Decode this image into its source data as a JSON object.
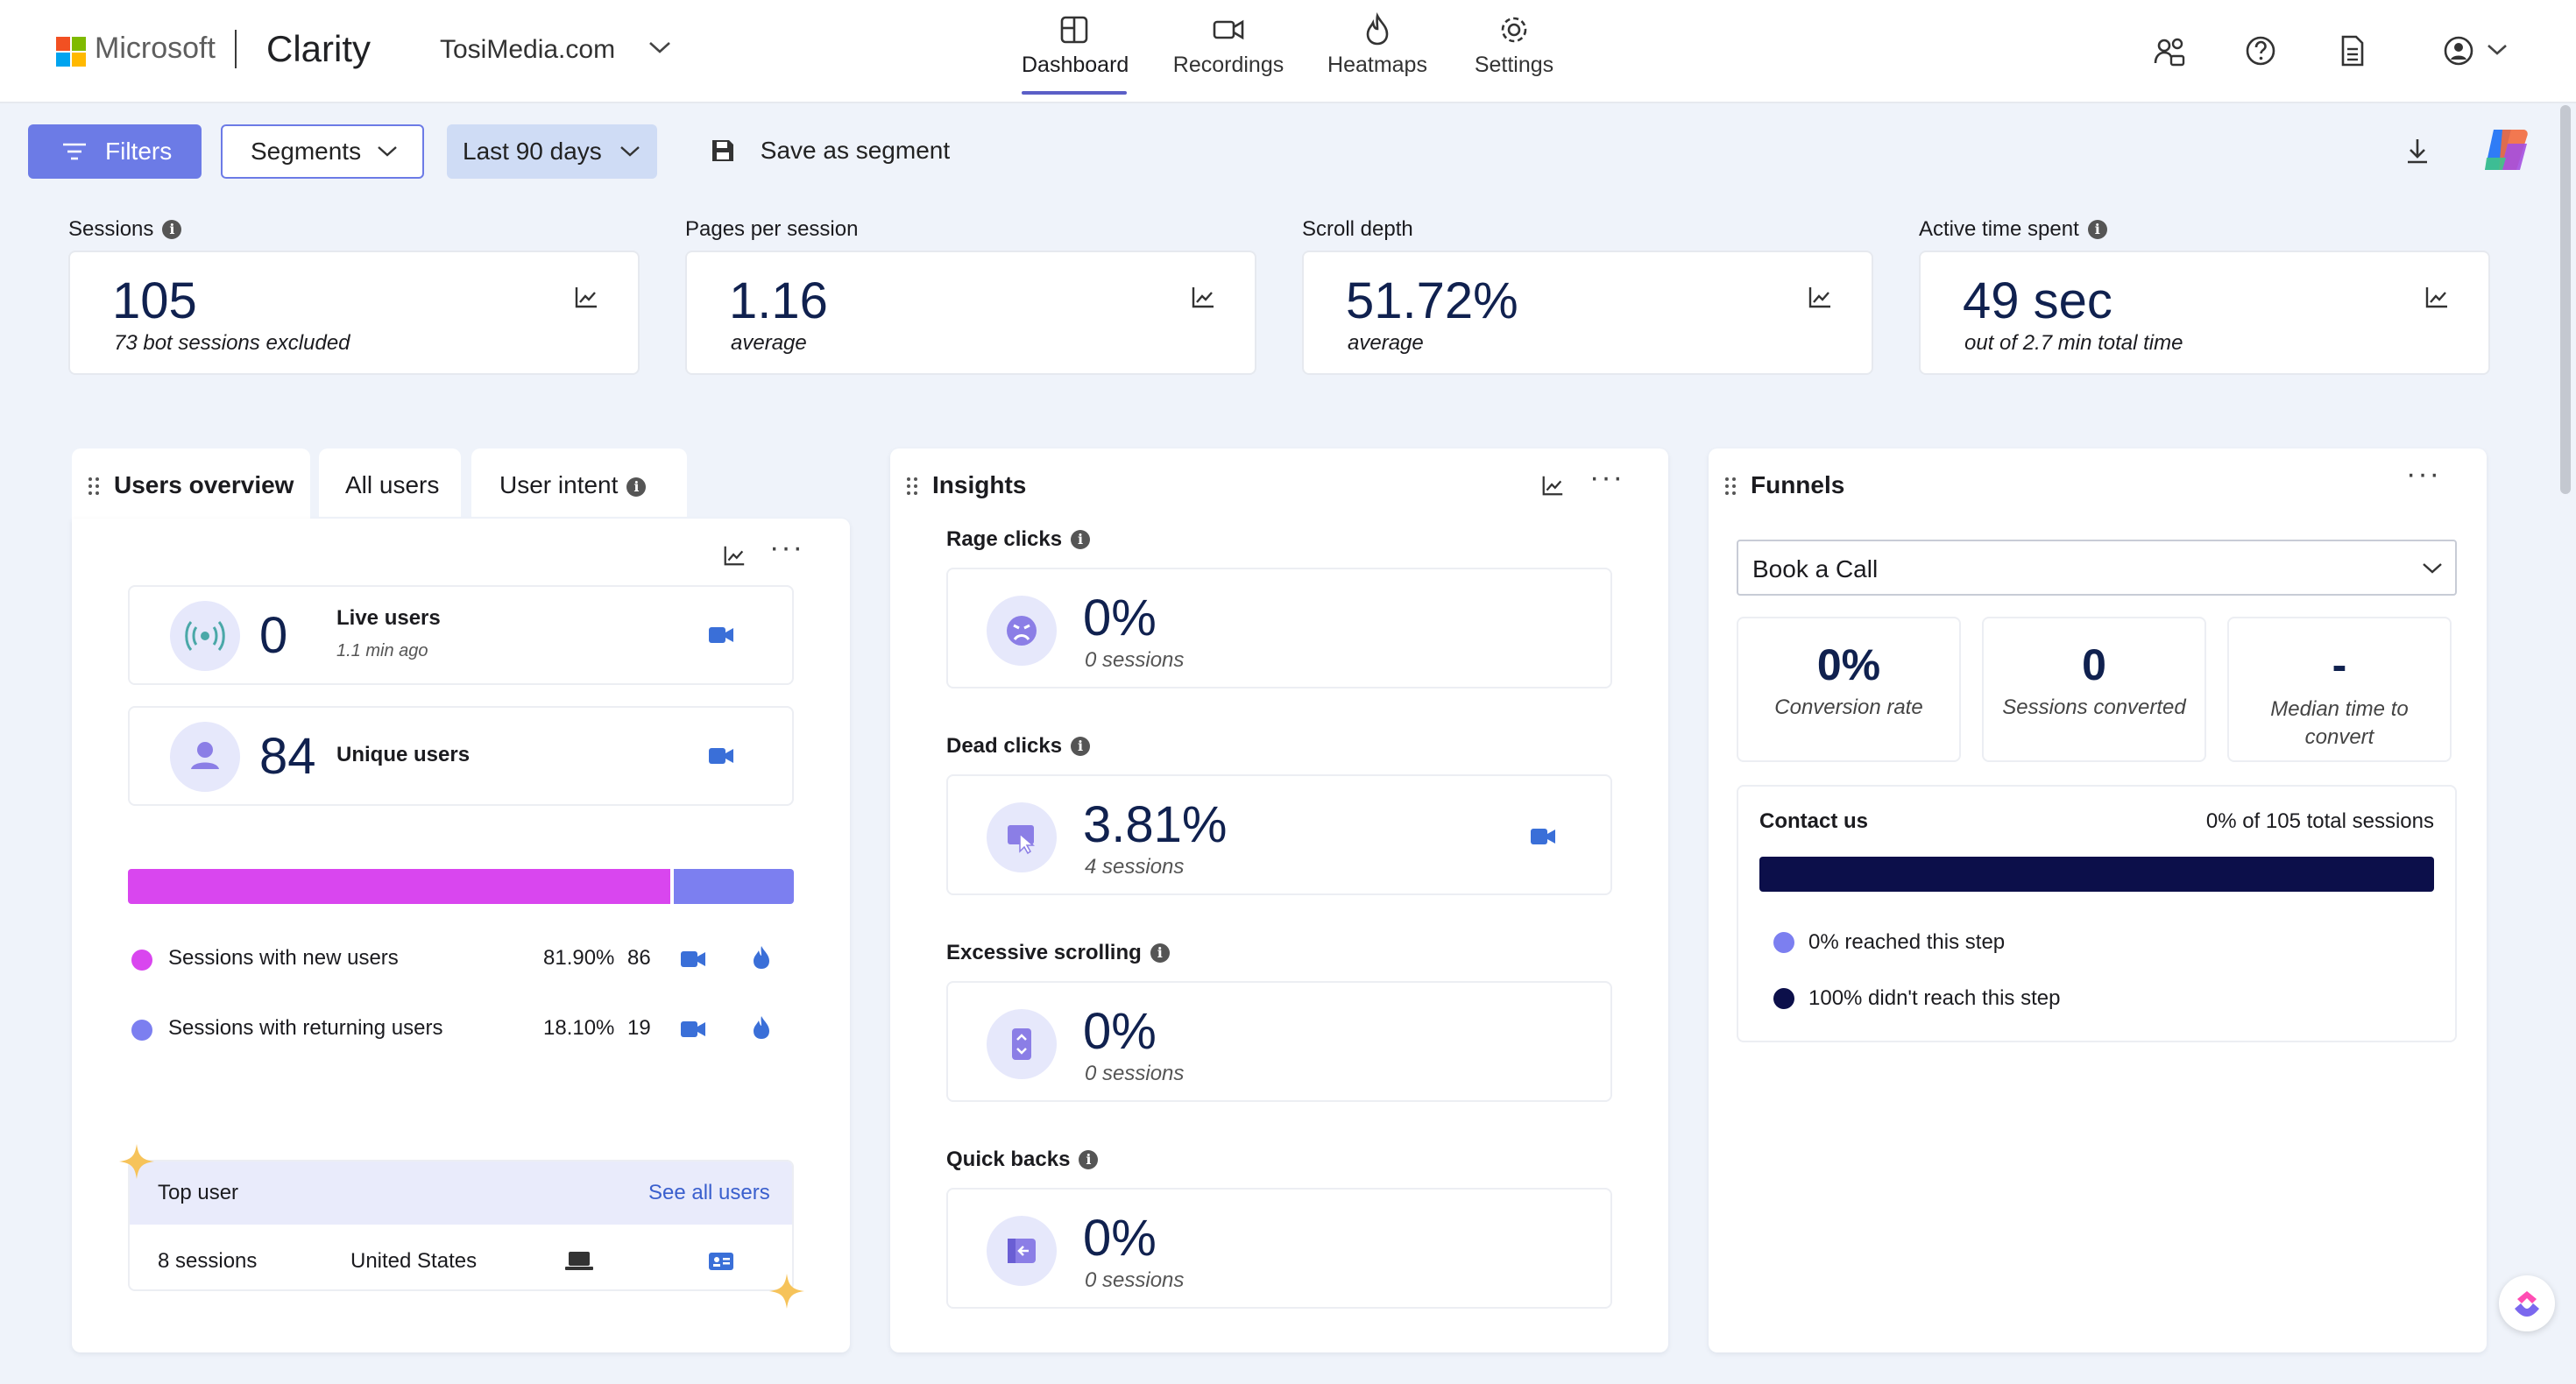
{
  "header": {
    "brand_company": "Microsoft",
    "brand_product": "Clarity",
    "project_name": "TosiMedia.com",
    "nav": [
      {
        "label": "Dashboard",
        "icon": "dashboard-icon",
        "active": true
      },
      {
        "label": "Recordings",
        "icon": "video-camera-icon",
        "active": false
      },
      {
        "label": "Heatmaps",
        "icon": "flame-icon",
        "active": false
      },
      {
        "label": "Settings",
        "icon": "gear-icon",
        "active": false
      }
    ],
    "right_icons": [
      "people-settings-icon",
      "help-icon",
      "document-icon",
      "account-icon"
    ]
  },
  "toolbar": {
    "filters_label": "Filters",
    "segments_label": "Segments",
    "date_range_label": "Last 90 days",
    "save_segment_label": "Save as segment"
  },
  "metrics": [
    {
      "label": "Sessions",
      "value": "105",
      "sub": "73 bot sessions excluded",
      "info": true
    },
    {
      "label": "Pages per session",
      "value": "1.16",
      "sub": "average",
      "info": false
    },
    {
      "label": "Scroll depth",
      "value": "51.72%",
      "sub": "average",
      "info": false
    },
    {
      "label": "Active time spent",
      "value": "49 sec",
      "sub": "out of 2.7 min total time",
      "info": true
    }
  ],
  "users": {
    "tabs": [
      "Users overview",
      "All users",
      "User intent"
    ],
    "live_users_value": "0",
    "live_users_label": "Live users",
    "live_users_time": "1.1 min ago",
    "unique_users_value": "84",
    "unique_users_label": "Unique users",
    "new_share": 0.819,
    "rows": [
      {
        "label": "Sessions with new users",
        "percent": "81.90%",
        "count": "86",
        "color": "#d946ef"
      },
      {
        "label": "Sessions with returning users",
        "percent": "18.10%",
        "count": "19",
        "color": "#7c7ff0"
      }
    ],
    "top_user_label": "Top user",
    "see_all_label": "See all users",
    "top_user_sessions": "8 sessions",
    "top_user_country": "United States"
  },
  "insights": {
    "title": "Insights",
    "items": [
      {
        "label": "Rage clicks",
        "value": "0%",
        "sub": "0 sessions",
        "icon": "angry-face-icon",
        "has_recording": false
      },
      {
        "label": "Dead clicks",
        "value": "3.81%",
        "sub": "4 sessions",
        "icon": "dead-click-icon",
        "has_recording": true
      },
      {
        "label": "Excessive scrolling",
        "value": "0%",
        "sub": "0 sessions",
        "icon": "scroll-icon",
        "has_recording": false
      },
      {
        "label": "Quick backs",
        "value": "0%",
        "sub": "0 sessions",
        "icon": "quick-back-icon",
        "has_recording": false
      }
    ]
  },
  "funnels": {
    "title": "Funnels",
    "selected": "Book a Call",
    "stats": [
      {
        "value": "0%",
        "label": "Conversion rate"
      },
      {
        "value": "0",
        "label": "Sessions converted"
      },
      {
        "value": "-",
        "label": "Median time to convert"
      }
    ],
    "step_name": "Contact us",
    "step_total": "0% of 105 total sessions",
    "reached_fraction": 0.0,
    "legend": [
      {
        "label": "0% reached this step",
        "color": "#7c7ff0"
      },
      {
        "label": "100% didn't reach this step",
        "color": "#0c0f4a"
      }
    ]
  },
  "colors": {
    "accent": "#6c7be6",
    "navy": "#0c0f4a",
    "magenta": "#d946ef",
    "violet": "#7c7ff0"
  }
}
